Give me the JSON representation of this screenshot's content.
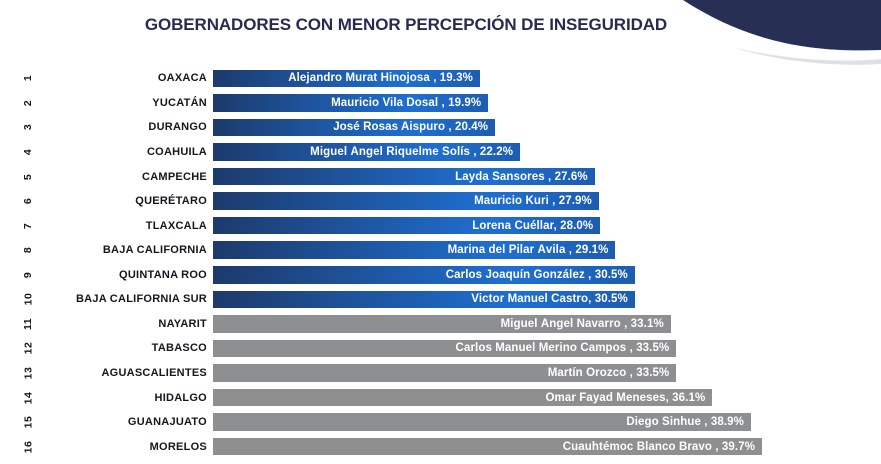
{
  "title": "GOBERNADORES CON MENOR PERCEPCIÓN DE INSEGURIDAD",
  "colors": {
    "title_text": "#272c4f",
    "label_text": "#15171e",
    "bar_text": "#ffffff",
    "blue_bar_start": "#1d3a6b",
    "blue_bar_mid": "#1e6fd2",
    "blue_bar_end": "#1d5cb0",
    "gray_bar": "#8d8f91",
    "corner_blob": "#272f55"
  },
  "chart_data": {
    "type": "bar",
    "orientation": "horizontal",
    "title": "GOBERNADORES CON MENOR PERCEPCIÓN DE INSEGURIDAD",
    "value_unit": "%",
    "value_axis_range": [
      0,
      48.3
    ],
    "grid": false,
    "legend": false,
    "color_groups": {
      "blue": "ranks 1-10 (gradient blue bars)",
      "gray": "ranks 11-16 (gray bars)"
    },
    "rows": [
      {
        "rank": "1",
        "state": "OAXACA",
        "governor": "Alejandro Murat Hinojosa",
        "value": 19.3,
        "bar_label": "Alejandro Murat Hinojosa , 19.3%",
        "color_group": "blue"
      },
      {
        "rank": "2",
        "state": "YUCATÁN",
        "governor": "Mauricio Vila Dosal",
        "value": 19.9,
        "bar_label": "Mauricio Vila Dosal , 19.9%",
        "color_group": "blue"
      },
      {
        "rank": "3",
        "state": "DURANGO",
        "governor": "José Rosas Aispuro",
        "value": 20.4,
        "bar_label": "José Rosas Aispuro , 20.4%",
        "color_group": "blue"
      },
      {
        "rank": "4",
        "state": "COAHUILA",
        "governor": "Miguel Ángel Riquelme Solís",
        "value": 22.2,
        "bar_label": "Miguel Ángel Riquelme Solís , 22.2%",
        "color_group": "blue"
      },
      {
        "rank": "5",
        "state": "CAMPECHE",
        "governor": "Layda Sansores",
        "value": 27.6,
        "bar_label": "Layda Sansores , 27.6%",
        "color_group": "blue"
      },
      {
        "rank": "6",
        "state": "QUERÉTARO",
        "governor": "Mauricio Kuri",
        "value": 27.9,
        "bar_label": "Mauricio Kuri , 27.9%",
        "color_group": "blue"
      },
      {
        "rank": "7",
        "state": "TLAXCALA",
        "governor": "Lorena Cuéllar",
        "value": 28.0,
        "bar_label": "Lorena Cuéllar, 28.0%",
        "color_group": "blue"
      },
      {
        "rank": "8",
        "state": "BAJA CALIFORNIA",
        "governor": "Marina del Pilar Ávila",
        "value": 29.1,
        "bar_label": "Marina del Pilar Ávila , 29.1%",
        "color_group": "blue"
      },
      {
        "rank": "9",
        "state": "QUINTANA ROO",
        "governor": "Carlos Joaquín González",
        "value": 30.5,
        "bar_label": "Carlos Joaquín González , 30.5%",
        "color_group": "blue"
      },
      {
        "rank": "10",
        "state": "BAJA CALIFORNIA SUR",
        "governor": "Victor Manuel Castro",
        "value": 30.5,
        "bar_label": "Victor Manuel Castro, 30.5%",
        "color_group": "blue"
      },
      {
        "rank": "11",
        "state": "NAYARIT",
        "governor": "Miguel Ángel Navarro",
        "value": 33.1,
        "bar_label": "Miguel Ángel Navarro , 33.1%",
        "color_group": "gray"
      },
      {
        "rank": "12",
        "state": "TABASCO",
        "governor": "Carlos Manuel Merino Campos",
        "value": 33.5,
        "bar_label": "Carlos Manuel Merino Campos , 33.5%",
        "color_group": "gray"
      },
      {
        "rank": "13",
        "state": "AGUASCALIENTES",
        "governor": "Martín Orozco",
        "value": 33.5,
        "bar_label": "Martín Orozco , 33.5%",
        "color_group": "gray"
      },
      {
        "rank": "14",
        "state": "HIDALGO",
        "governor": "Omar Fayad Meneses",
        "value": 36.1,
        "bar_label": "Omar Fayad Meneses, 36.1%",
        "color_group": "gray"
      },
      {
        "rank": "15",
        "state": "GUANAJUATO",
        "governor": "Diego Sinhue",
        "value": 38.9,
        "bar_label": "Diego Sinhue , 38.9%",
        "color_group": "gray"
      },
      {
        "rank": "16",
        "state": "MORELOS",
        "governor": "Cuauhtémoc Blanco Bravo",
        "value": 39.7,
        "bar_label": "Cuauhtémoc Blanco Bravo , 39.7%",
        "color_group": "gray"
      }
    ]
  }
}
